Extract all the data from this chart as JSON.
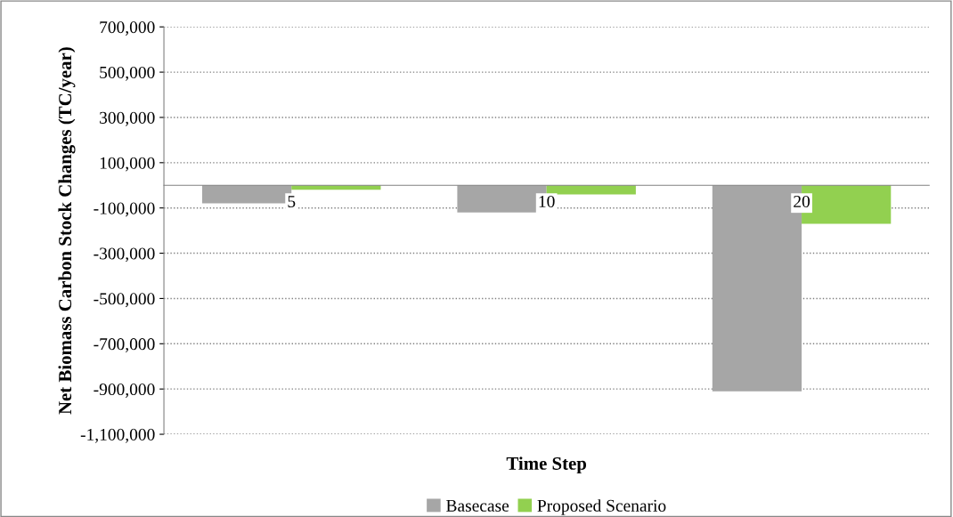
{
  "chart_data": {
    "type": "bar",
    "xlabel": "Time Step",
    "ylabel": "Net Biomass Carbon Stock Changes (TC/year)",
    "categories": [
      "5",
      "10",
      "20"
    ],
    "series": [
      {
        "name": "Basecase",
        "color": "#a6a6a6",
        "values": [
          -80000,
          -120000,
          -910000
        ]
      },
      {
        "name": "Proposed Scenario",
        "color": "#92d050",
        "values": [
          -20000,
          -40000,
          -170000
        ]
      }
    ],
    "ylim": [
      -1100000,
      700000
    ],
    "yticks": [
      {
        "value": -1100000,
        "label": "-1,100,000"
      },
      {
        "value": -900000,
        "label": "-900,000"
      },
      {
        "value": -700000,
        "label": "-700,000"
      },
      {
        "value": -500000,
        "label": "-500,000"
      },
      {
        "value": -300000,
        "label": "-300,000"
      },
      {
        "value": -100000,
        "label": "-100,000"
      },
      {
        "value": 100000,
        "label": "100,000"
      },
      {
        "value": 300000,
        "label": "300,000"
      },
      {
        "value": 500000,
        "label": "500,000"
      },
      {
        "value": 700000,
        "label": "700,000"
      }
    ],
    "grid": "y",
    "legend": "bottom"
  }
}
